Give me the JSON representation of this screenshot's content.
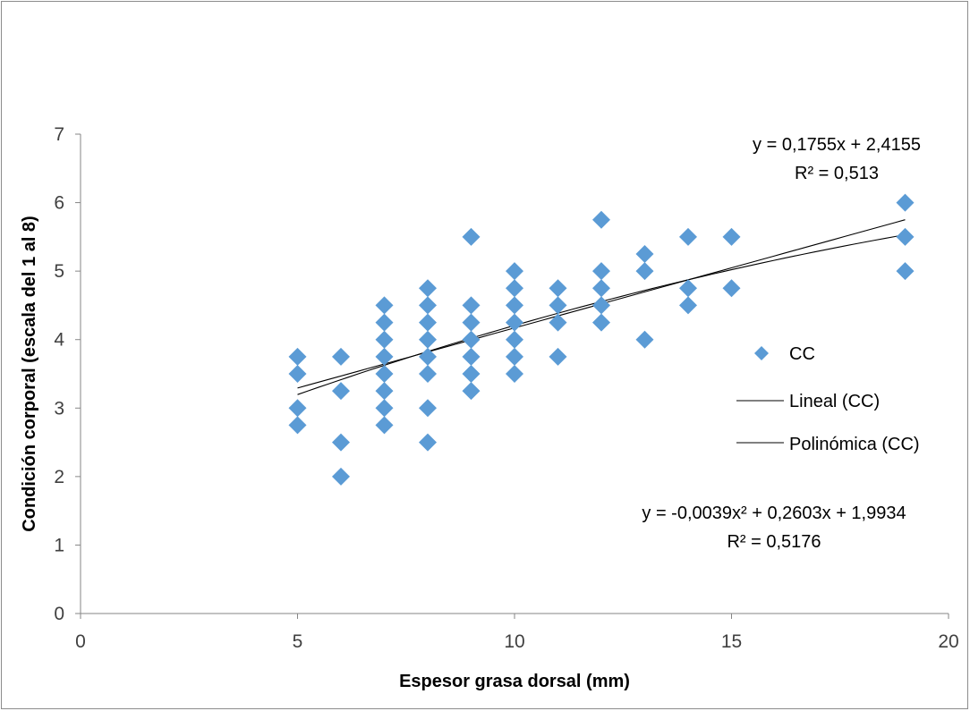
{
  "chart_data": {
    "type": "scatter",
    "xlabel": "Espesor grasa dorsal (mm)",
    "ylabel": "Condición corporal (escala del 1 al 8)",
    "xlim": [
      0,
      20
    ],
    "ylim": [
      0,
      7
    ],
    "x_ticks": [
      "0",
      "5",
      "10",
      "15",
      "20"
    ],
    "y_ticks": [
      "0",
      "1",
      "2",
      "3",
      "4",
      "5",
      "6",
      "7"
    ],
    "grid": false,
    "legend_placement": "right",
    "series": [
      {
        "name": "CC",
        "color": "#5b9bd5",
        "marker": "diamond",
        "points": [
          [
            5,
            3.75
          ],
          [
            5,
            3.5
          ],
          [
            5,
            3.0
          ],
          [
            5,
            2.75
          ],
          [
            6,
            3.75
          ],
          [
            6,
            3.25
          ],
          [
            6,
            2.5
          ],
          [
            6,
            2.0
          ],
          [
            7,
            4.5
          ],
          [
            7,
            4.25
          ],
          [
            7,
            4.0
          ],
          [
            7,
            3.75
          ],
          [
            7,
            3.5
          ],
          [
            7,
            3.25
          ],
          [
            7,
            3.0
          ],
          [
            7,
            2.75
          ],
          [
            8,
            4.75
          ],
          [
            8,
            4.5
          ],
          [
            8,
            4.25
          ],
          [
            8,
            4.0
          ],
          [
            8,
            3.75
          ],
          [
            8,
            3.5
          ],
          [
            8,
            3.0
          ],
          [
            8,
            2.5
          ],
          [
            9,
            5.5
          ],
          [
            9,
            4.5
          ],
          [
            9,
            4.25
          ],
          [
            9,
            4.0
          ],
          [
            9,
            3.75
          ],
          [
            9,
            3.5
          ],
          [
            9,
            3.25
          ],
          [
            10,
            5.0
          ],
          [
            10,
            4.75
          ],
          [
            10,
            4.5
          ],
          [
            10,
            4.25
          ],
          [
            10,
            4.0
          ],
          [
            10,
            3.75
          ],
          [
            10,
            3.5
          ],
          [
            11,
            4.75
          ],
          [
            11,
            4.5
          ],
          [
            11,
            4.25
          ],
          [
            11,
            3.75
          ],
          [
            12,
            5.75
          ],
          [
            12,
            5.0
          ],
          [
            12,
            4.75
          ],
          [
            12,
            4.5
          ],
          [
            12,
            4.25
          ],
          [
            13,
            5.25
          ],
          [
            13,
            5.0
          ],
          [
            13,
            4.0
          ],
          [
            14,
            5.5
          ],
          [
            14,
            4.75
          ],
          [
            14,
            4.5
          ],
          [
            15,
            5.5
          ],
          [
            15,
            4.75
          ],
          [
            19,
            6.0
          ],
          [
            19,
            5.5
          ],
          [
            19,
            5.0
          ]
        ]
      }
    ],
    "trendlines": [
      {
        "name": "Lineal (CC)",
        "kind": "linear",
        "coefficients": [
          0.1755,
          2.4155
        ],
        "equation": "y = 0,1755x + 2,4155",
        "r2_label": "R² = 0,513",
        "x_range": [
          5,
          19
        ],
        "color": "#000000"
      },
      {
        "name": "Polinómica (CC)",
        "kind": "polynomial",
        "coefficients": [
          -0.0039,
          0.2603,
          1.9934
        ],
        "equation": "y = -0,0039x² + 0,2603x + 1,9934",
        "r2_label": "R² = 0,5176",
        "x_range": [
          5,
          19
        ],
        "color": "#000000"
      }
    ]
  }
}
